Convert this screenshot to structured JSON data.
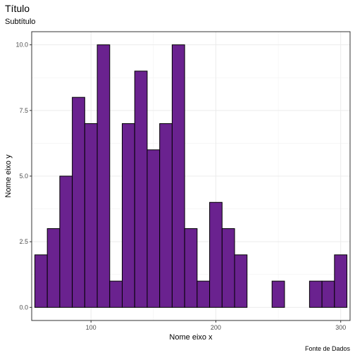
{
  "chart_data": {
    "type": "bar",
    "title": "Título",
    "subtitle": "Subtítulo",
    "xlabel": "Nome eixo x",
    "ylabel": "Nome eixo y",
    "caption": "Fonte de Dados",
    "bar_color": "#6A228F",
    "bin_width": 10,
    "x_first_center": 60,
    "xlim": [
      52.5,
      307.5
    ],
    "ylim": [
      -0.5,
      10.5
    ],
    "x_ticks": [
      100,
      200,
      300
    ],
    "y_ticks": [
      0.0,
      2.5,
      5.0,
      7.5,
      10.0
    ],
    "y_tick_labels": [
      "0.0",
      "2.5",
      "5.0",
      "7.5",
      "10.0"
    ],
    "grid": true,
    "values": [
      2,
      3,
      5,
      8,
      7,
      10,
      1,
      7,
      9,
      6,
      7,
      10,
      3,
      1,
      4,
      3,
      2,
      0,
      0,
      1,
      0,
      0,
      1,
      1,
      2
    ]
  }
}
